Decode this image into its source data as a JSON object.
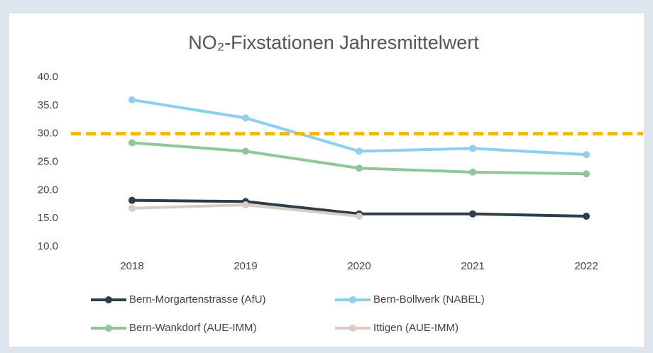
{
  "chart_data": {
    "type": "line",
    "title": "NO₂-Fixstationen Jahresmittelwert",
    "categories": [
      "2018",
      "2019",
      "2020",
      "2021",
      "2022"
    ],
    "series": [
      {
        "name": "Bern-Morgartenstrasse (AfU)",
        "color": "#2e3d47",
        "values": [
          18.2,
          18.0,
          15.8,
          15.8,
          15.4
        ]
      },
      {
        "name": "Bern-Bollwerk (NABEL)",
        "color": "#8ccfee",
        "values": [
          36.0,
          32.8,
          26.9,
          27.4,
          26.3
        ]
      },
      {
        "name": "Bern-Wankdorf (AUE-IMM)",
        "color": "#8fc79a",
        "values": [
          28.4,
          26.9,
          23.9,
          23.2,
          22.9
        ]
      },
      {
        "name": "Ittigen (AUE-IMM)",
        "color": "#d9ccc4",
        "values": [
          16.8,
          17.4,
          15.4,
          null,
          null
        ]
      }
    ],
    "threshold": 30,
    "threshold_color": "#f5b800",
    "ylim": [
      10,
      40
    ],
    "yticks": [
      {
        "value": 10,
        "label": "10.0"
      },
      {
        "value": 15,
        "label": "15.0"
      },
      {
        "value": 20,
        "label": "20.0"
      },
      {
        "value": 25,
        "label": "25.0"
      },
      {
        "value": 30,
        "label": "30.0"
      },
      {
        "value": 35,
        "label": "35.0"
      },
      {
        "value": 40,
        "label": "40.0"
      }
    ],
    "grid": false
  }
}
